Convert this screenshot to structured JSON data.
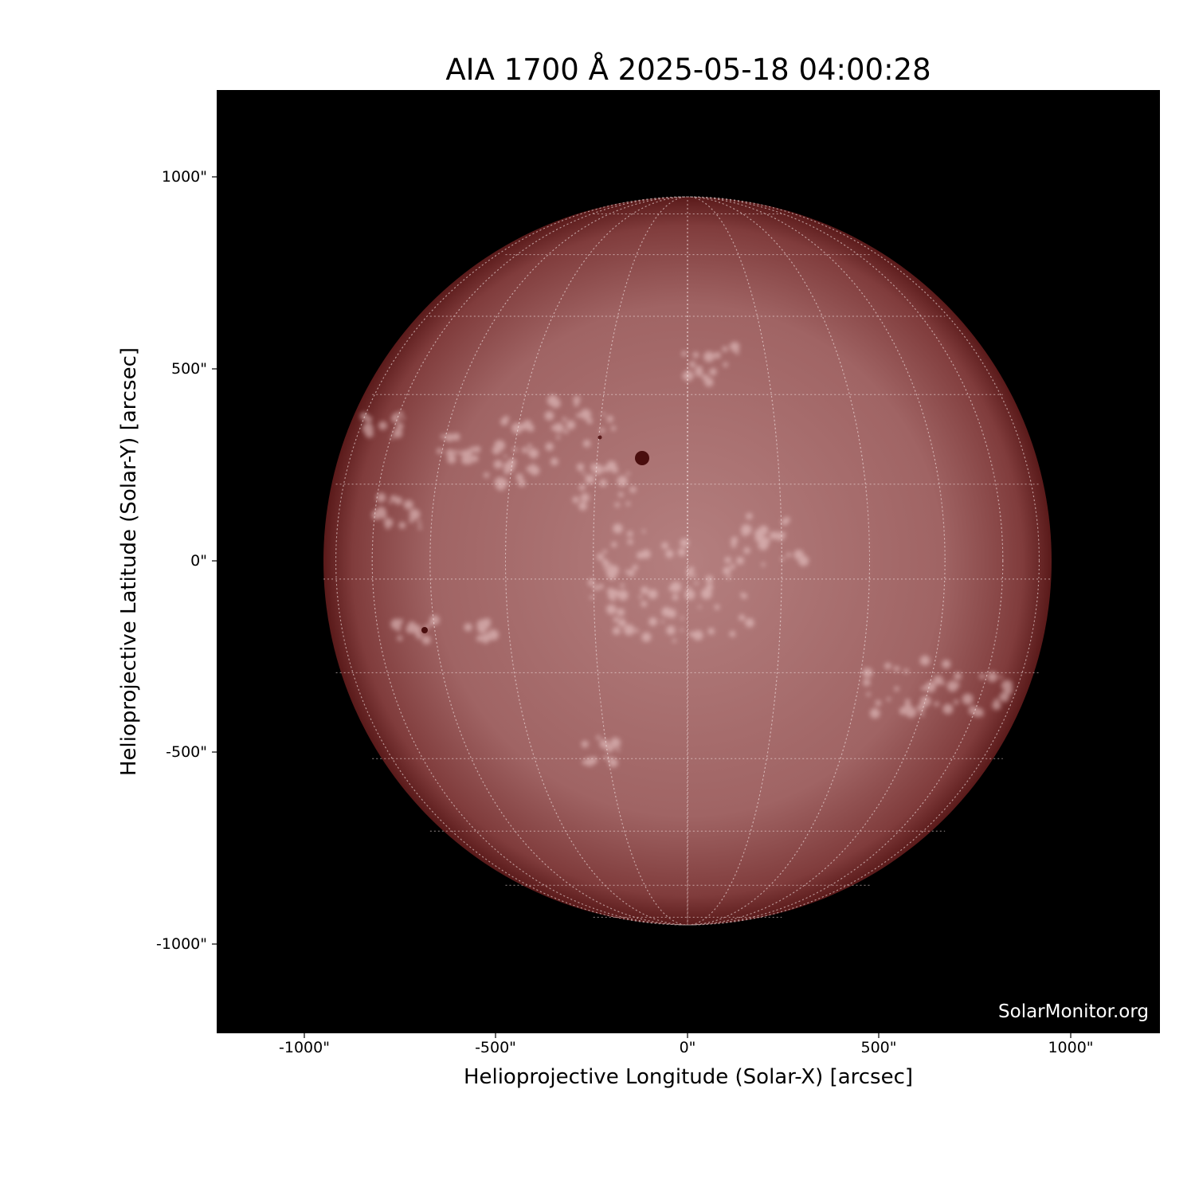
{
  "title": "AIA 1700 Å 2025-05-18 04:00:28",
  "xlabel": "Helioprojective Longitude (Solar-X) [arcsec]",
  "ylabel": "Helioprojective Latitude (Solar-Y) [arcsec]",
  "x_ticks": [
    "-1000\"",
    "-500\"",
    "0\"",
    "500\"",
    "1000\""
  ],
  "y_ticks": [
    "1000\"",
    "500\"",
    "0\"",
    "-500\"",
    "-1000\""
  ],
  "watermark": "SolarMonitor.org",
  "colors": {
    "disk_center": "#b27a7a",
    "disk_limb": "#5a1a1a",
    "plage": "#f0d0d0",
    "background": "#000000"
  }
}
